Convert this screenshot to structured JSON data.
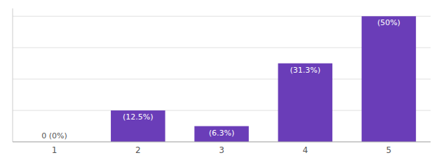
{
  "chart_data": {
    "type": "bar",
    "categories": [
      "1",
      "2",
      "3",
      "4",
      "5"
    ],
    "values": [
      0,
      2,
      1,
      5,
      8
    ],
    "percentages": [
      0,
      12.5,
      6.3,
      31.3,
      50
    ],
    "percentage_labels": [
      "0 (0%)",
      "(12.5%)",
      "(6.3%)",
      "(31.3%)",
      "(50%)"
    ],
    "color": "#6a3db8",
    "ylim": [
      0,
      8.5
    ],
    "yticks": [
      0,
      2,
      4,
      6,
      8
    ],
    "grid": true,
    "tick_labels": "x"
  }
}
